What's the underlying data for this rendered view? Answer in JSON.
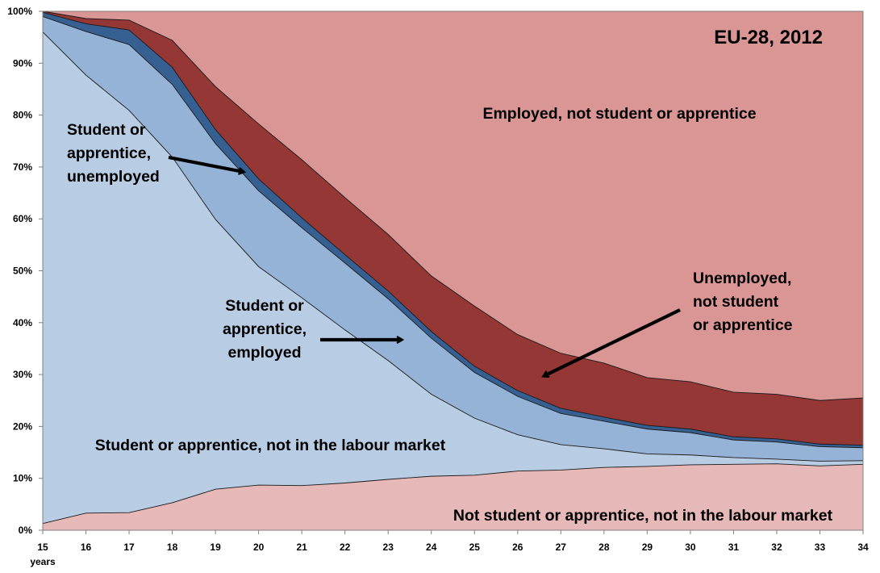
{
  "chart_data": {
    "type": "area",
    "stacked": true,
    "title": "EU-28, 2012",
    "xlabel": "years",
    "ylabel": "",
    "x": [
      15,
      16,
      17,
      18,
      19,
      20,
      21,
      22,
      23,
      24,
      25,
      26,
      27,
      28,
      29,
      30,
      31,
      32,
      33,
      34
    ],
    "x_tick_labels": [
      "15",
      "16",
      "17",
      "18",
      "19",
      "20",
      "21",
      "22",
      "23",
      "24",
      "25",
      "26",
      "27",
      "28",
      "29",
      "30",
      "31",
      "32",
      "33",
      "34"
    ],
    "y_tick_labels": [
      "0%",
      "10%",
      "20%",
      "30%",
      "40%",
      "50%",
      "60%",
      "70%",
      "80%",
      "90%",
      "100%"
    ],
    "ylim": [
      0,
      100
    ],
    "grid": false,
    "legend": "none",
    "series": [
      {
        "name": "Not student or apprentice, not in the labour market",
        "color": "#e6b8b7",
        "values": [
          1.3,
          3.3,
          3.4,
          5.3,
          7.9,
          8.7,
          8.6,
          9.1,
          9.8,
          10.4,
          10.6,
          11.4,
          11.6,
          12.1,
          12.3,
          12.6,
          12.7,
          12.8,
          12.4,
          12.7
        ]
      },
      {
        "name": "Student or apprentice, not in the labour market",
        "color": "#b8cce4",
        "values": [
          94.7,
          84.4,
          77.5,
          66.6,
          52.0,
          42.1,
          36.2,
          29.5,
          22.9,
          15.8,
          11.0,
          7.0,
          4.9,
          3.6,
          2.4,
          1.9,
          1.3,
          0.9,
          0.9,
          0.7
        ]
      },
      {
        "name": "Student or apprentice, employed",
        "color": "#95b3d7",
        "values": [
          3.0,
          8.4,
          12.7,
          14.0,
          14.6,
          14.6,
          13.5,
          12.9,
          11.9,
          10.8,
          8.8,
          7.4,
          6.0,
          5.3,
          4.8,
          4.3,
          3.4,
          3.3,
          2.8,
          2.5
        ]
      },
      {
        "name": "Student or apprentice, unemployed",
        "color": "#366092",
        "values": [
          0.8,
          1.5,
          2.8,
          3.3,
          2.7,
          2.3,
          1.9,
          1.6,
          1.5,
          1.3,
          1.2,
          1.1,
          1.0,
          0.8,
          0.7,
          0.7,
          0.6,
          0.6,
          0.5,
          0.5
        ]
      },
      {
        "name": "Unemployed, not student or apprentice",
        "color": "#953735",
        "values": [
          0.2,
          1.0,
          1.9,
          5.2,
          8.3,
          10.6,
          11.2,
          11.0,
          10.9,
          10.7,
          11.6,
          10.8,
          10.6,
          10.4,
          9.2,
          9.1,
          8.6,
          8.6,
          8.4,
          9.1
        ]
      },
      {
        "name": "Employed, not student or apprentice",
        "color": "#da9694",
        "values": [
          0.0,
          1.4,
          1.7,
          5.6,
          14.5,
          21.7,
          28.6,
          35.9,
          43.0,
          51.0,
          56.8,
          62.3,
          65.9,
          67.8,
          70.6,
          71.4,
          73.4,
          73.8,
          75.0,
          74.5
        ]
      }
    ],
    "annotations": [
      {
        "id": "employed-not-student",
        "lines": [
          "Employed, not student or apprentice"
        ]
      },
      {
        "id": "student-unemployed",
        "lines": [
          "Student or",
          "apprentice,",
          "unemployed"
        ]
      },
      {
        "id": "student-employed",
        "lines": [
          "Student or",
          "apprentice,",
          "employed"
        ]
      },
      {
        "id": "unemployed-not-student",
        "lines": [
          "Unemployed,",
          "not student",
          "or apprentice"
        ]
      },
      {
        "id": "student-not-labour",
        "lines": [
          "Student or apprentice, not in the labour market"
        ]
      },
      {
        "id": "not-student-not-labour",
        "lines": [
          "Not student or apprentice, not in the labour market"
        ]
      }
    ]
  }
}
